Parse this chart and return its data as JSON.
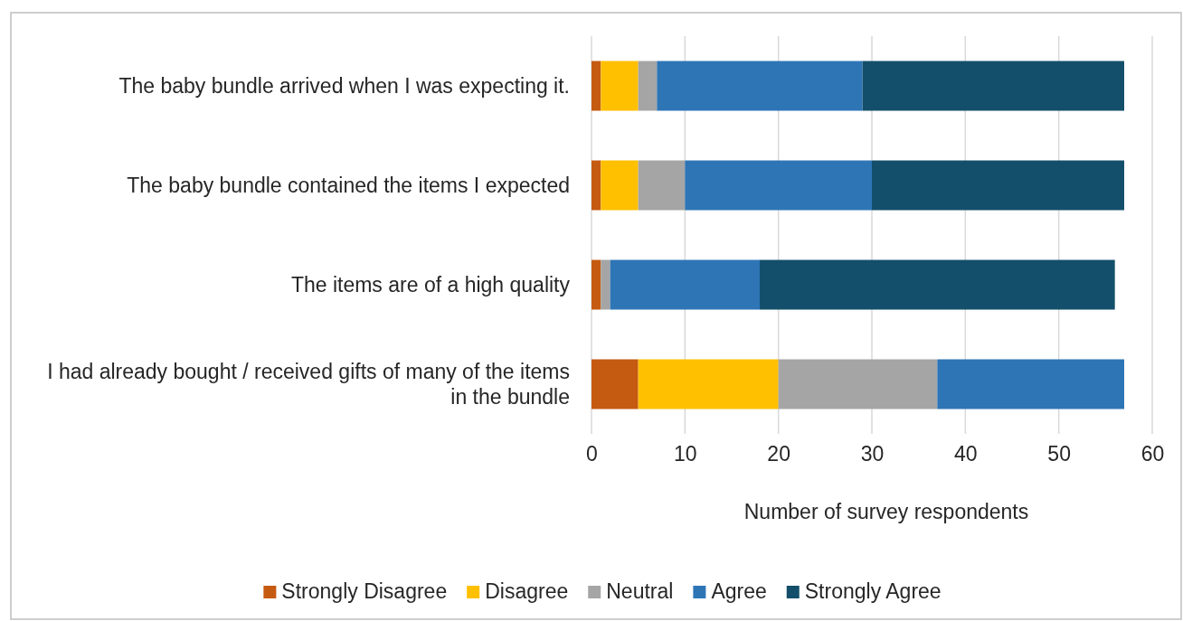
{
  "chart_data": {
    "type": "bar",
    "orientation": "horizontal",
    "stacked": true,
    "categories": [
      "The baby bundle arrived when I was expecting it.",
      "The baby bundle contained the items I expected",
      "The items are of a high quality",
      "I had already bought / received gifts of many of the items in the bundle"
    ],
    "series": [
      {
        "name": "Strongly Disagree",
        "color": "#c55a11",
        "values": [
          1,
          1,
          1,
          5
        ]
      },
      {
        "name": "Disagree",
        "color": "#ffc000",
        "values": [
          4,
          4,
          0,
          15
        ]
      },
      {
        "name": "Neutral",
        "color": "#a5a5a5",
        "values": [
          2,
          5,
          1,
          17
        ]
      },
      {
        "name": "Agree",
        "color": "#2e75b6",
        "values": [
          22,
          20,
          16,
          20
        ]
      },
      {
        "name": "Strongly Agree",
        "color": "#134f6b",
        "values": [
          28,
          27,
          38,
          0
        ]
      }
    ],
    "xlim": [
      0,
      60
    ],
    "xticks": [
      0,
      10,
      20,
      30,
      40,
      50,
      60
    ],
    "xlabel": "Number of survey respondents",
    "grid": "x",
    "legend": "bottom"
  }
}
